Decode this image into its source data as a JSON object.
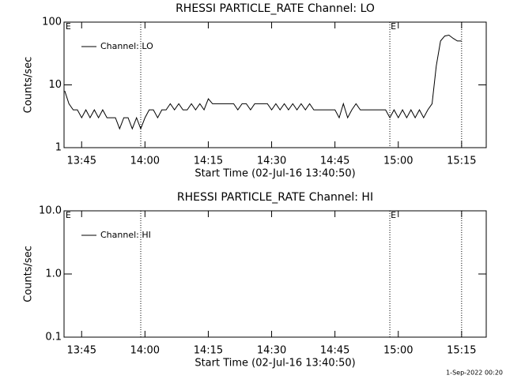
{
  "chart_data": [
    {
      "type": "line",
      "title": "RHESSI PARTICLE_RATE Channel: LO",
      "y_label": "Counts/sec",
      "x_label": "Start Time (02-Jul-16 13:40:50)",
      "log_y": true,
      "legend": "upper left",
      "xlim": [
        "13:40:50",
        "15:20:50"
      ],
      "xticks": [
        "13:45",
        "14:00",
        "14:15",
        "14:30",
        "14:45",
        "15:00",
        "15:15"
      ],
      "ylim": [
        1,
        100
      ],
      "yticks": [
        1,
        10,
        100
      ],
      "vlines": [
        "13:59",
        "14:58",
        "15:15"
      ],
      "markers": [
        {
          "x": "13:41",
          "label": "E"
        },
        {
          "x": "14:58",
          "label": "E"
        }
      ],
      "x": [
        "13:41",
        "13:42",
        "13:43",
        "13:44",
        "13:45",
        "13:46",
        "13:47",
        "13:48",
        "13:49",
        "13:50",
        "13:51",
        "13:52",
        "13:53",
        "13:54",
        "13:55",
        "13:56",
        "13:57",
        "13:58",
        "13:59",
        "14:00",
        "14:01",
        "14:02",
        "14:03",
        "14:04",
        "14:05",
        "14:06",
        "14:07",
        "14:08",
        "14:09",
        "14:10",
        "14:11",
        "14:12",
        "14:13",
        "14:14",
        "14:15",
        "14:16",
        "14:17",
        "14:18",
        "14:19",
        "14:20",
        "14:21",
        "14:22",
        "14:23",
        "14:24",
        "14:25",
        "14:26",
        "14:27",
        "14:28",
        "14:29",
        "14:30",
        "14:31",
        "14:32",
        "14:33",
        "14:34",
        "14:35",
        "14:36",
        "14:37",
        "14:38",
        "14:39",
        "14:40",
        "14:41",
        "14:42",
        "14:43",
        "14:44",
        "14:45",
        "14:46",
        "14:47",
        "14:48",
        "14:49",
        "14:50",
        "14:51",
        "14:52",
        "14:53",
        "14:54",
        "14:55",
        "14:56",
        "14:57",
        "14:58",
        "14:59",
        "15:00",
        "15:01",
        "15:02",
        "15:03",
        "15:04",
        "15:05",
        "15:06",
        "15:07",
        "15:08",
        "15:09",
        "15:10",
        "15:11",
        "15:12",
        "15:13",
        "15:14",
        "15:15"
      ],
      "series": [
        {
          "name": "Channel: LO",
          "color": "#000000",
          "values": [
            8,
            5,
            4,
            4,
            3,
            4,
            3,
            4,
            3,
            4,
            3,
            3,
            3,
            2,
            3,
            3,
            2,
            3,
            2,
            3,
            4,
            4,
            3,
            4,
            4,
            5,
            4,
            5,
            4,
            4,
            5,
            4,
            5,
            4,
            6,
            5,
            5,
            5,
            5,
            5,
            5,
            4,
            5,
            5,
            4,
            5,
            5,
            5,
            5,
            4,
            5,
            4,
            5,
            4,
            5,
            4,
            5,
            4,
            5,
            4,
            4,
            4,
            4,
            4,
            4,
            3,
            5,
            3,
            4,
            5,
            4,
            4,
            4,
            4,
            4,
            4,
            4,
            3,
            4,
            3,
            4,
            3,
            4,
            3,
            4,
            3,
            4,
            5,
            20,
            50,
            60,
            62,
            55,
            50,
            50
          ]
        }
      ]
    },
    {
      "type": "line",
      "title": "RHESSI PARTICLE_RATE Channel: HI",
      "y_label": "Counts/sec",
      "x_label": "Start Time (02-Jul-16 13:40:50)",
      "log_y": true,
      "legend": "upper left",
      "xlim": [
        "13:40:50",
        "15:20:50"
      ],
      "xticks": [
        "13:45",
        "14:00",
        "14:15",
        "14:30",
        "14:45",
        "15:00",
        "15:15"
      ],
      "ylim": [
        0.1,
        10
      ],
      "yticks": [
        0.1,
        {
          "value": 1,
          "label": "1.0"
        },
        {
          "value": 10,
          "label": "10.0"
        }
      ],
      "vlines": [
        "13:59",
        "14:58",
        "15:15"
      ],
      "markers": [
        {
          "x": "13:41",
          "label": "E"
        },
        {
          "x": "14:58",
          "label": "E"
        }
      ],
      "x": [],
      "series": [
        {
          "name": "Channel: HI",
          "color": "#000000",
          "values": []
        }
      ]
    }
  ],
  "footer": "1-Sep-2022 00:20"
}
